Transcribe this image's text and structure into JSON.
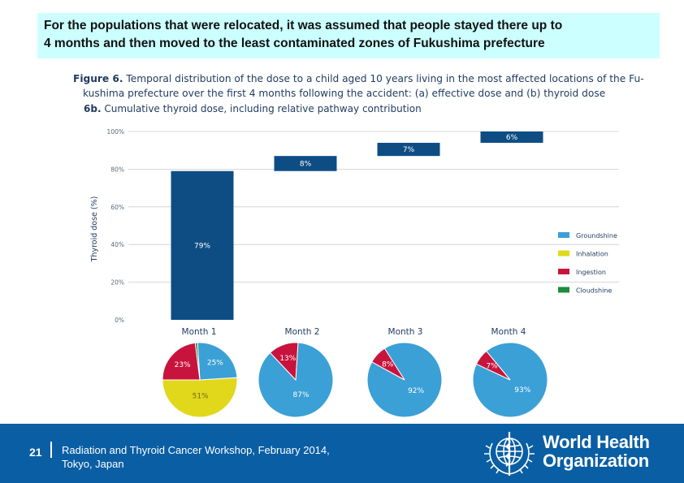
{
  "slide": {
    "headline_line1": "For the populations that were relocated, it was assumed that people stayed there up to",
    "headline_line2": "4 months and then moved to the least contaminated  zones of Fukushima prefecture",
    "figure_label": "Figure 6.",
    "figure_caption_line1": "Temporal distribution of the dose to a child aged 10 years living in the most affected locations of the Fu-",
    "figure_caption_line2": "kushima prefecture over the first 4 months following the accident: (a) effective dose and (b) thyroid dose",
    "subfigure_label": "6b.",
    "subfigure_caption": "Cumulative thyroid dose, including relative pathway contribution"
  },
  "chart_data": [
    {
      "type": "bar",
      "subtype": "waterfall",
      "ylabel": "Thyroid dose (%)",
      "ylim": [
        0,
        100
      ],
      "yticks": [
        "0%",
        "20%",
        "40%",
        "60%",
        "80%",
        "100%"
      ],
      "grid": true,
      "categories": [
        "Month 1",
        "Month 2",
        "Month 3",
        "Month 4"
      ],
      "values": [
        79,
        8,
        7,
        6
      ],
      "value_labels": [
        "79%",
        "8%",
        "7%",
        "6%"
      ],
      "color": "#0e4d84",
      "legend": [
        {
          "label": "Groundshine",
          "color": "#3ba0d6"
        },
        {
          "label": "Inhalation",
          "color": "#e1d81c"
        },
        {
          "label": "Ingestion",
          "color": "#c8143c"
        },
        {
          "label": "Cloudshine",
          "color": "#1c8c3c"
        }
      ],
      "legend_position": "right"
    },
    {
      "type": "pie",
      "title": "Month 1",
      "slices": [
        {
          "name": "Inhalation",
          "value": 51,
          "label": "51%"
        },
        {
          "name": "Groundshine",
          "value": 25,
          "label": "25%"
        },
        {
          "name": "Ingestion",
          "value": 23,
          "label": "23%"
        },
        {
          "name": "Cloudshine",
          "value": 1,
          "label": ""
        }
      ]
    },
    {
      "type": "pie",
      "title": "Month 2",
      "slices": [
        {
          "name": "Groundshine",
          "value": 87,
          "label": "87%"
        },
        {
          "name": "Ingestion",
          "value": 13,
          "label": "13%"
        }
      ]
    },
    {
      "type": "pie",
      "title": "Month 3",
      "slices": [
        {
          "name": "Groundshine",
          "value": 92,
          "label": "92%"
        },
        {
          "name": "Ingestion",
          "value": 8,
          "label": "8%"
        }
      ]
    },
    {
      "type": "pie",
      "title": "Month 4",
      "slices": [
        {
          "name": "Groundshine",
          "value": 93,
          "label": "93%"
        },
        {
          "name": "Ingestion",
          "value": 7,
          "label": "7%"
        }
      ]
    }
  ],
  "footer": {
    "page_number": "21",
    "text_line1": "Radiation and Thyroid Cancer Workshop, February 2014,",
    "text_line2": "Tokyo, Japan",
    "org_line1": "World Health",
    "org_line2": "Organization",
    "logo_icon": "who-emblem-icon"
  }
}
